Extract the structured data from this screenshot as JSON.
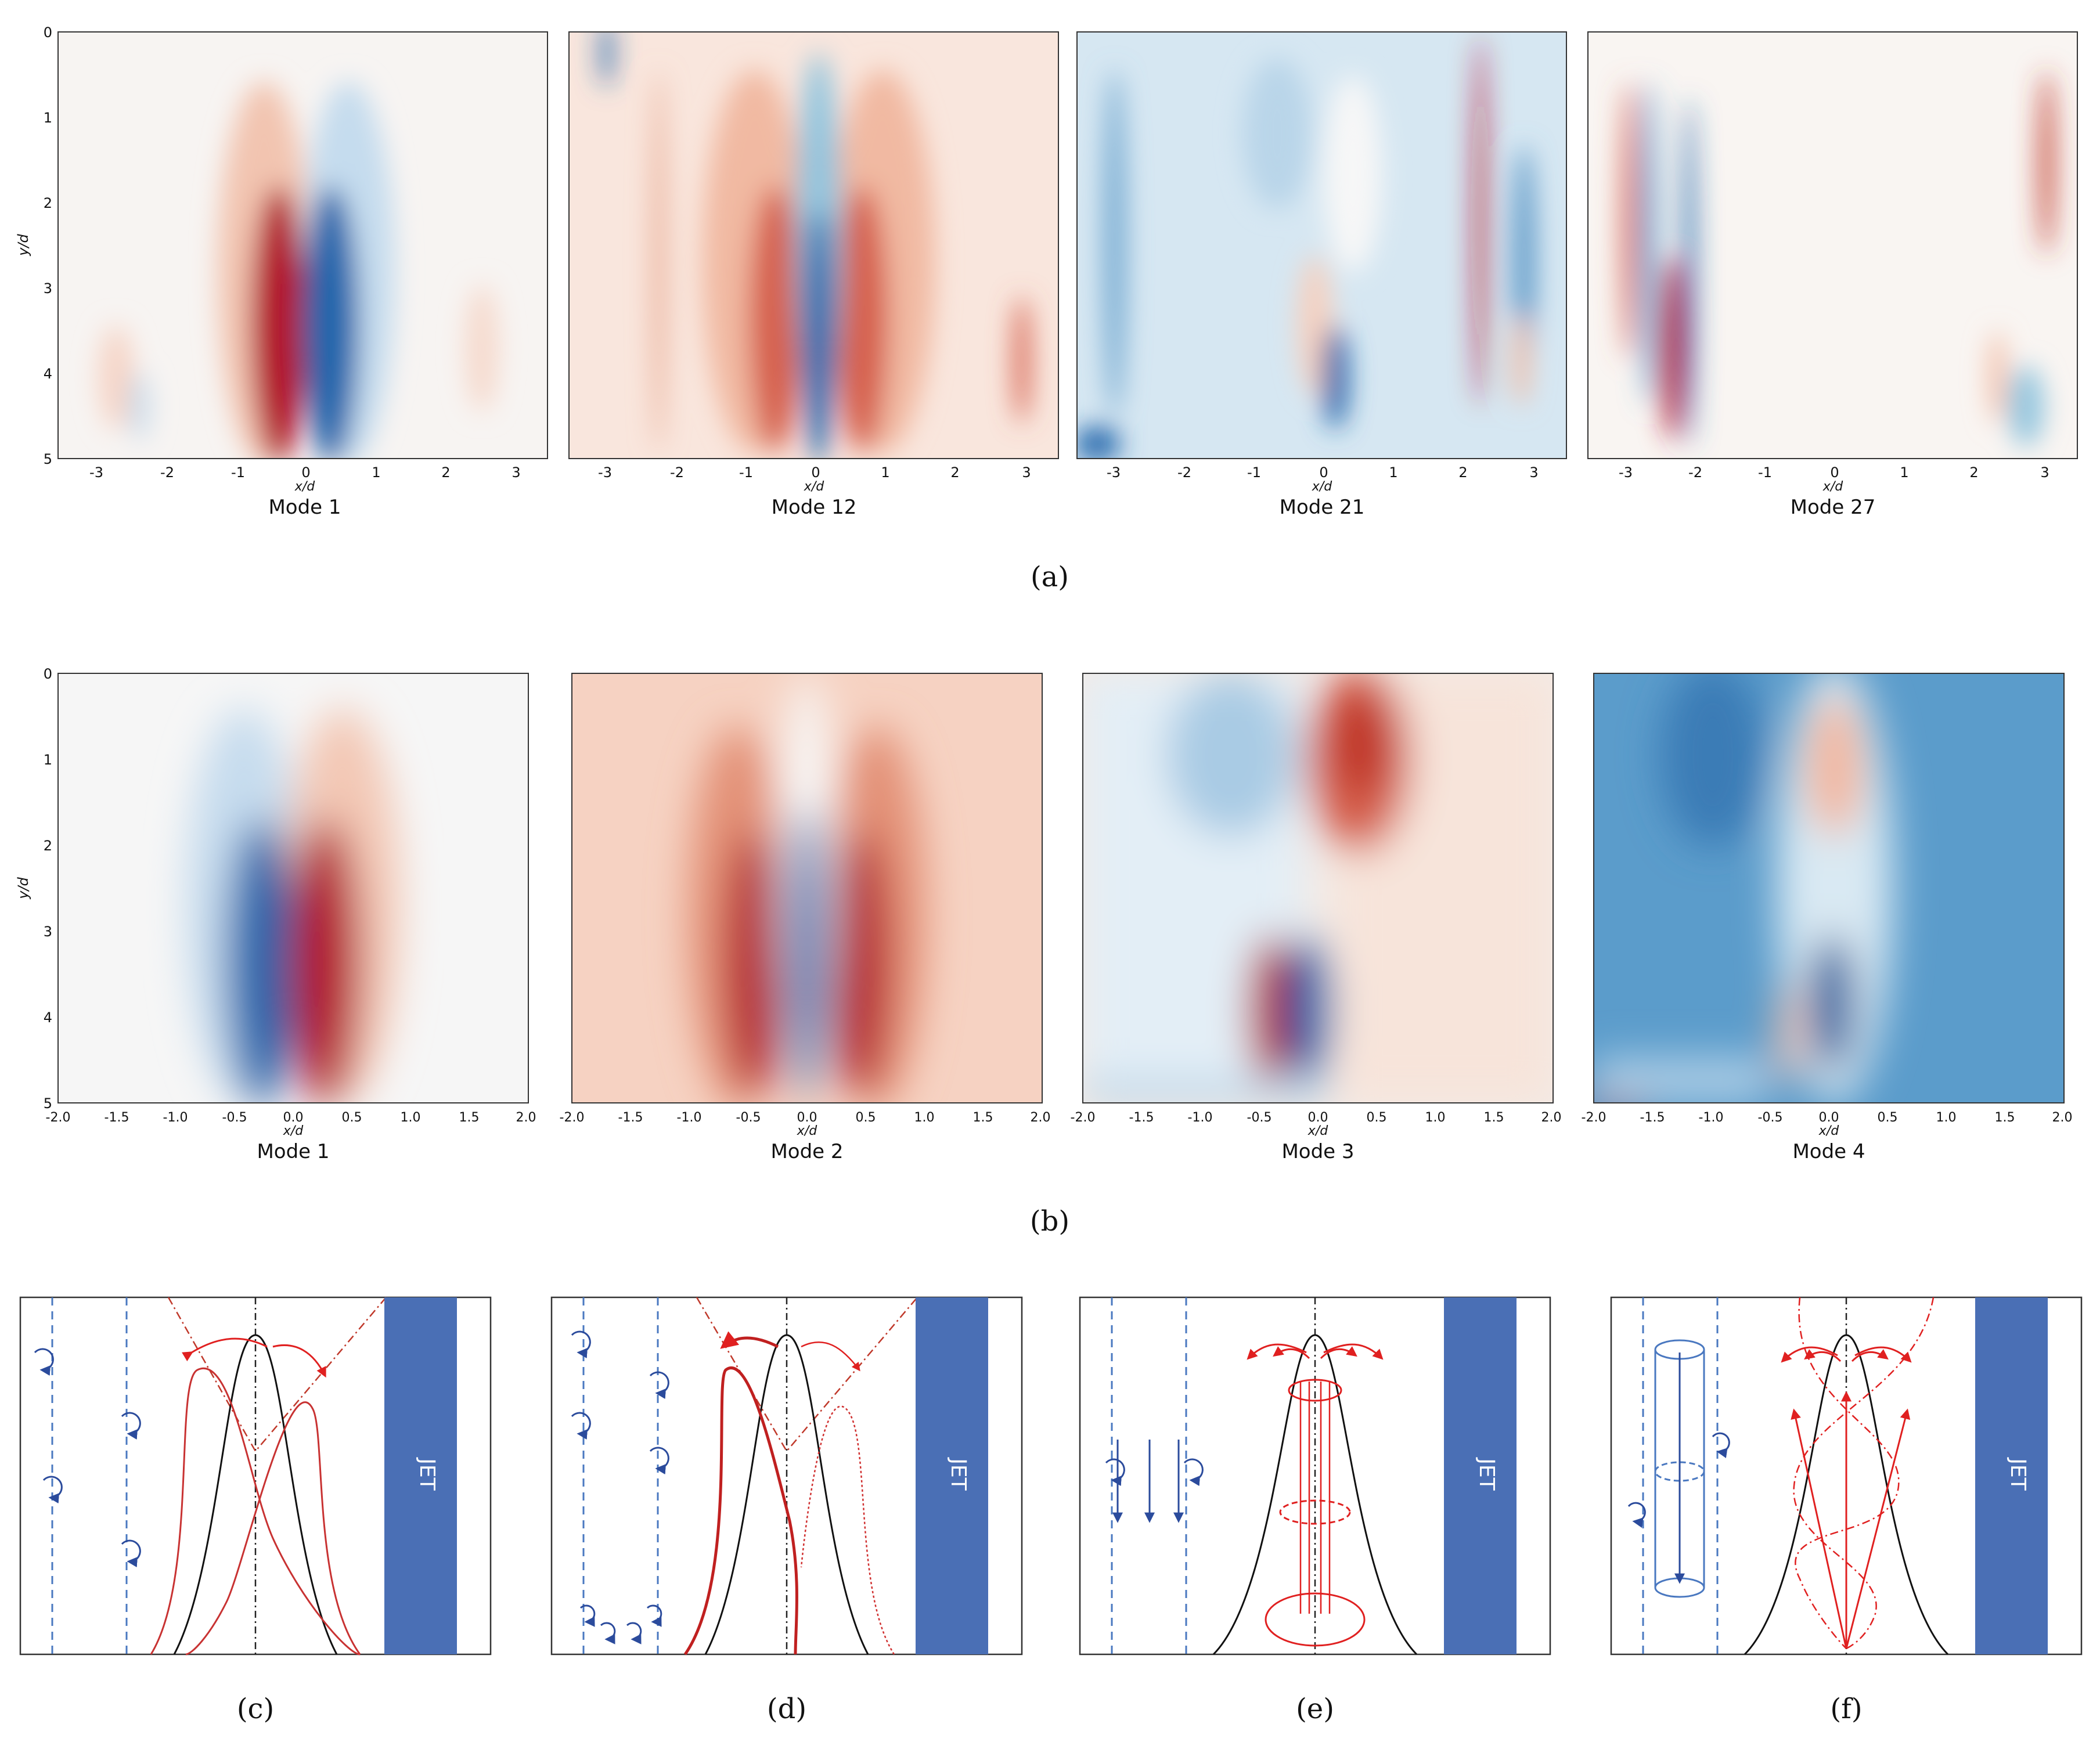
{
  "row_a": {
    "label": "(a)",
    "xlabel": "x/d",
    "ylabel": "y/d",
    "x_ticks": [
      "-3",
      "-2",
      "-1",
      "0",
      "1",
      "2",
      "3"
    ],
    "y_ticks": [
      "0",
      "1",
      "2",
      "3",
      "4",
      "5"
    ],
    "modes": [
      "Mode 1",
      "Mode 12",
      "Mode 21",
      "Mode 27"
    ]
  },
  "row_b": {
    "label": "(b)",
    "xlabel": "x/d",
    "ylabel": "y/d",
    "x_ticks": [
      "-2.0",
      "-1.5",
      "-1.0",
      "-0.5",
      "0.0",
      "0.5",
      "1.0",
      "1.5",
      "2.0"
    ],
    "y_ticks": [
      "0",
      "1",
      "2",
      "3",
      "4",
      "5"
    ],
    "modes": [
      "Mode 1",
      "Mode 2",
      "Mode 3",
      "Mode 4"
    ]
  },
  "row_c": {
    "labels": [
      "(c)",
      "(d)",
      "(e)",
      "(f)"
    ],
    "jet_label": "JET"
  },
  "colors": {
    "positive": "#b2182b",
    "negative": "#2166ac",
    "jet": "#4a6fb5",
    "vortex_blue": "#2b4b9c",
    "sketch_red": "#e02020"
  }
}
